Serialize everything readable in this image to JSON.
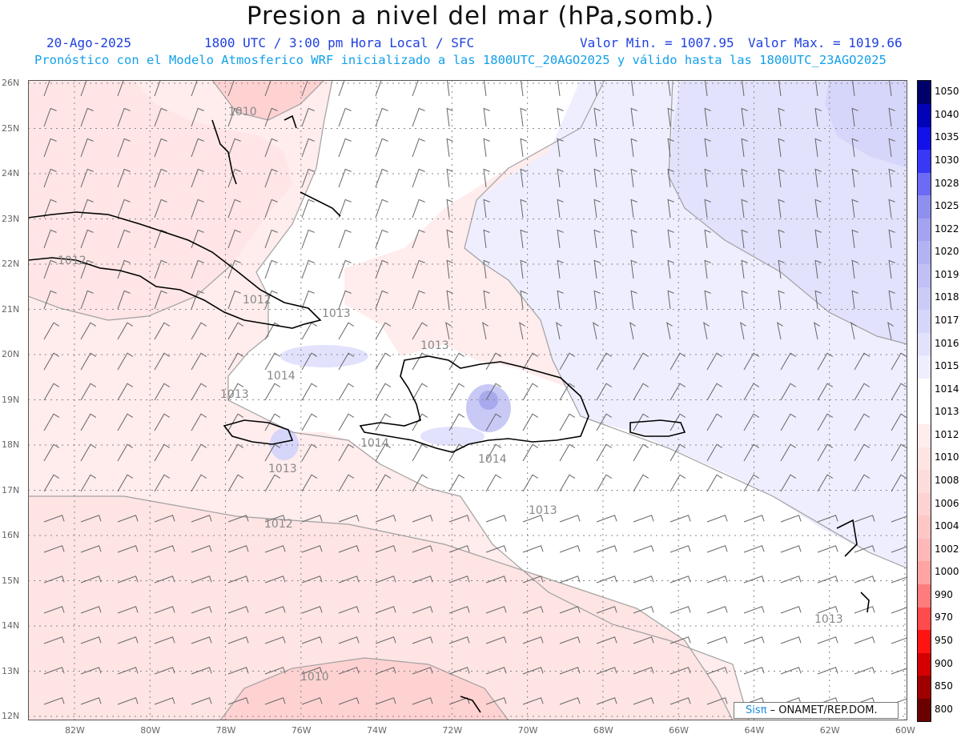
{
  "header": {
    "title": "Presion a nivel del mar (hPa,somb.)",
    "date": "20-Ago-2025",
    "time": "1800 UTC / 3:00 pm Hora Local / SFC",
    "value_min": "Valor Min. = 1007.95",
    "value_max": "Valor Max. = 1019.66",
    "forecast": "Pronóstico con el Modelo Atmosferico WRF inicializado a las 1800UTC_20AGO2025 y válido hasta las  1800UTC_23AGO2025"
  },
  "credit": {
    "brand": "Sisπ",
    "text": " – ONAMET/REP.DOM."
  },
  "axes": {
    "lat_labels": [
      "26N",
      "25N",
      "24N",
      "23N",
      "22N",
      "21N",
      "20N",
      "19N",
      "18N",
      "17N",
      "16N",
      "15N",
      "14N",
      "13N",
      "12N"
    ],
    "lon_labels": [
      "82W",
      "80W",
      "78W",
      "76W",
      "74W",
      "72W",
      "70W",
      "68W",
      "66W",
      "64W",
      "62W",
      "60W"
    ]
  },
  "colorbar": {
    "levels": [
      "800",
      "850",
      "900",
      "950",
      "970",
      "990",
      "1000",
      "1002",
      "1004",
      "1006",
      "1008",
      "1010",
      "1012",
      "1013",
      "1014",
      "1015",
      "1016",
      "1017",
      "1018",
      "1019",
      "1020",
      "1022",
      "1025",
      "1028",
      "1030",
      "1035",
      "1040",
      "1050"
    ],
    "colors": [
      "#6b0000",
      "#9e0000",
      "#d40000",
      "#ff1414",
      "#ff4b4b",
      "#ff7c7c",
      "#ffa3a3",
      "#ffb8b8",
      "#ffc6c6",
      "#ffd2d2",
      "#ffdcdc",
      "#ffe4e4",
      "#ffecec",
      "#ffffff",
      "#ffffff",
      "#eeeeff",
      "#e2e2fd",
      "#d6d6fb",
      "#cbcbf8",
      "#c0c0f6",
      "#b3b3f3",
      "#a3a3f0",
      "#8f8fef",
      "#6b6bf5",
      "#3838f5",
      "#1212e8",
      "#0202b8",
      "#00006a"
    ]
  },
  "contour_labels": [
    {
      "text": "1010"
    },
    {
      "text": "1012"
    },
    {
      "text": "1012"
    },
    {
      "text": "1013"
    },
    {
      "text": "1013"
    },
    {
      "text": "1014"
    },
    {
      "text": "1013"
    },
    {
      "text": "1013"
    },
    {
      "text": "1014"
    },
    {
      "text": "1014"
    },
    {
      "text": "1013"
    },
    {
      "text": "1012"
    },
    {
      "text": "1013"
    },
    {
      "text": "1010"
    }
  ],
  "colors": {
    "title": "#111111",
    "header_blue": "#1f3fe0",
    "forecast_cyan": "#12a0ea",
    "axis_label": "#666666",
    "contour": "#a0a0a0",
    "coast": "#000000",
    "barb": "#666666"
  }
}
